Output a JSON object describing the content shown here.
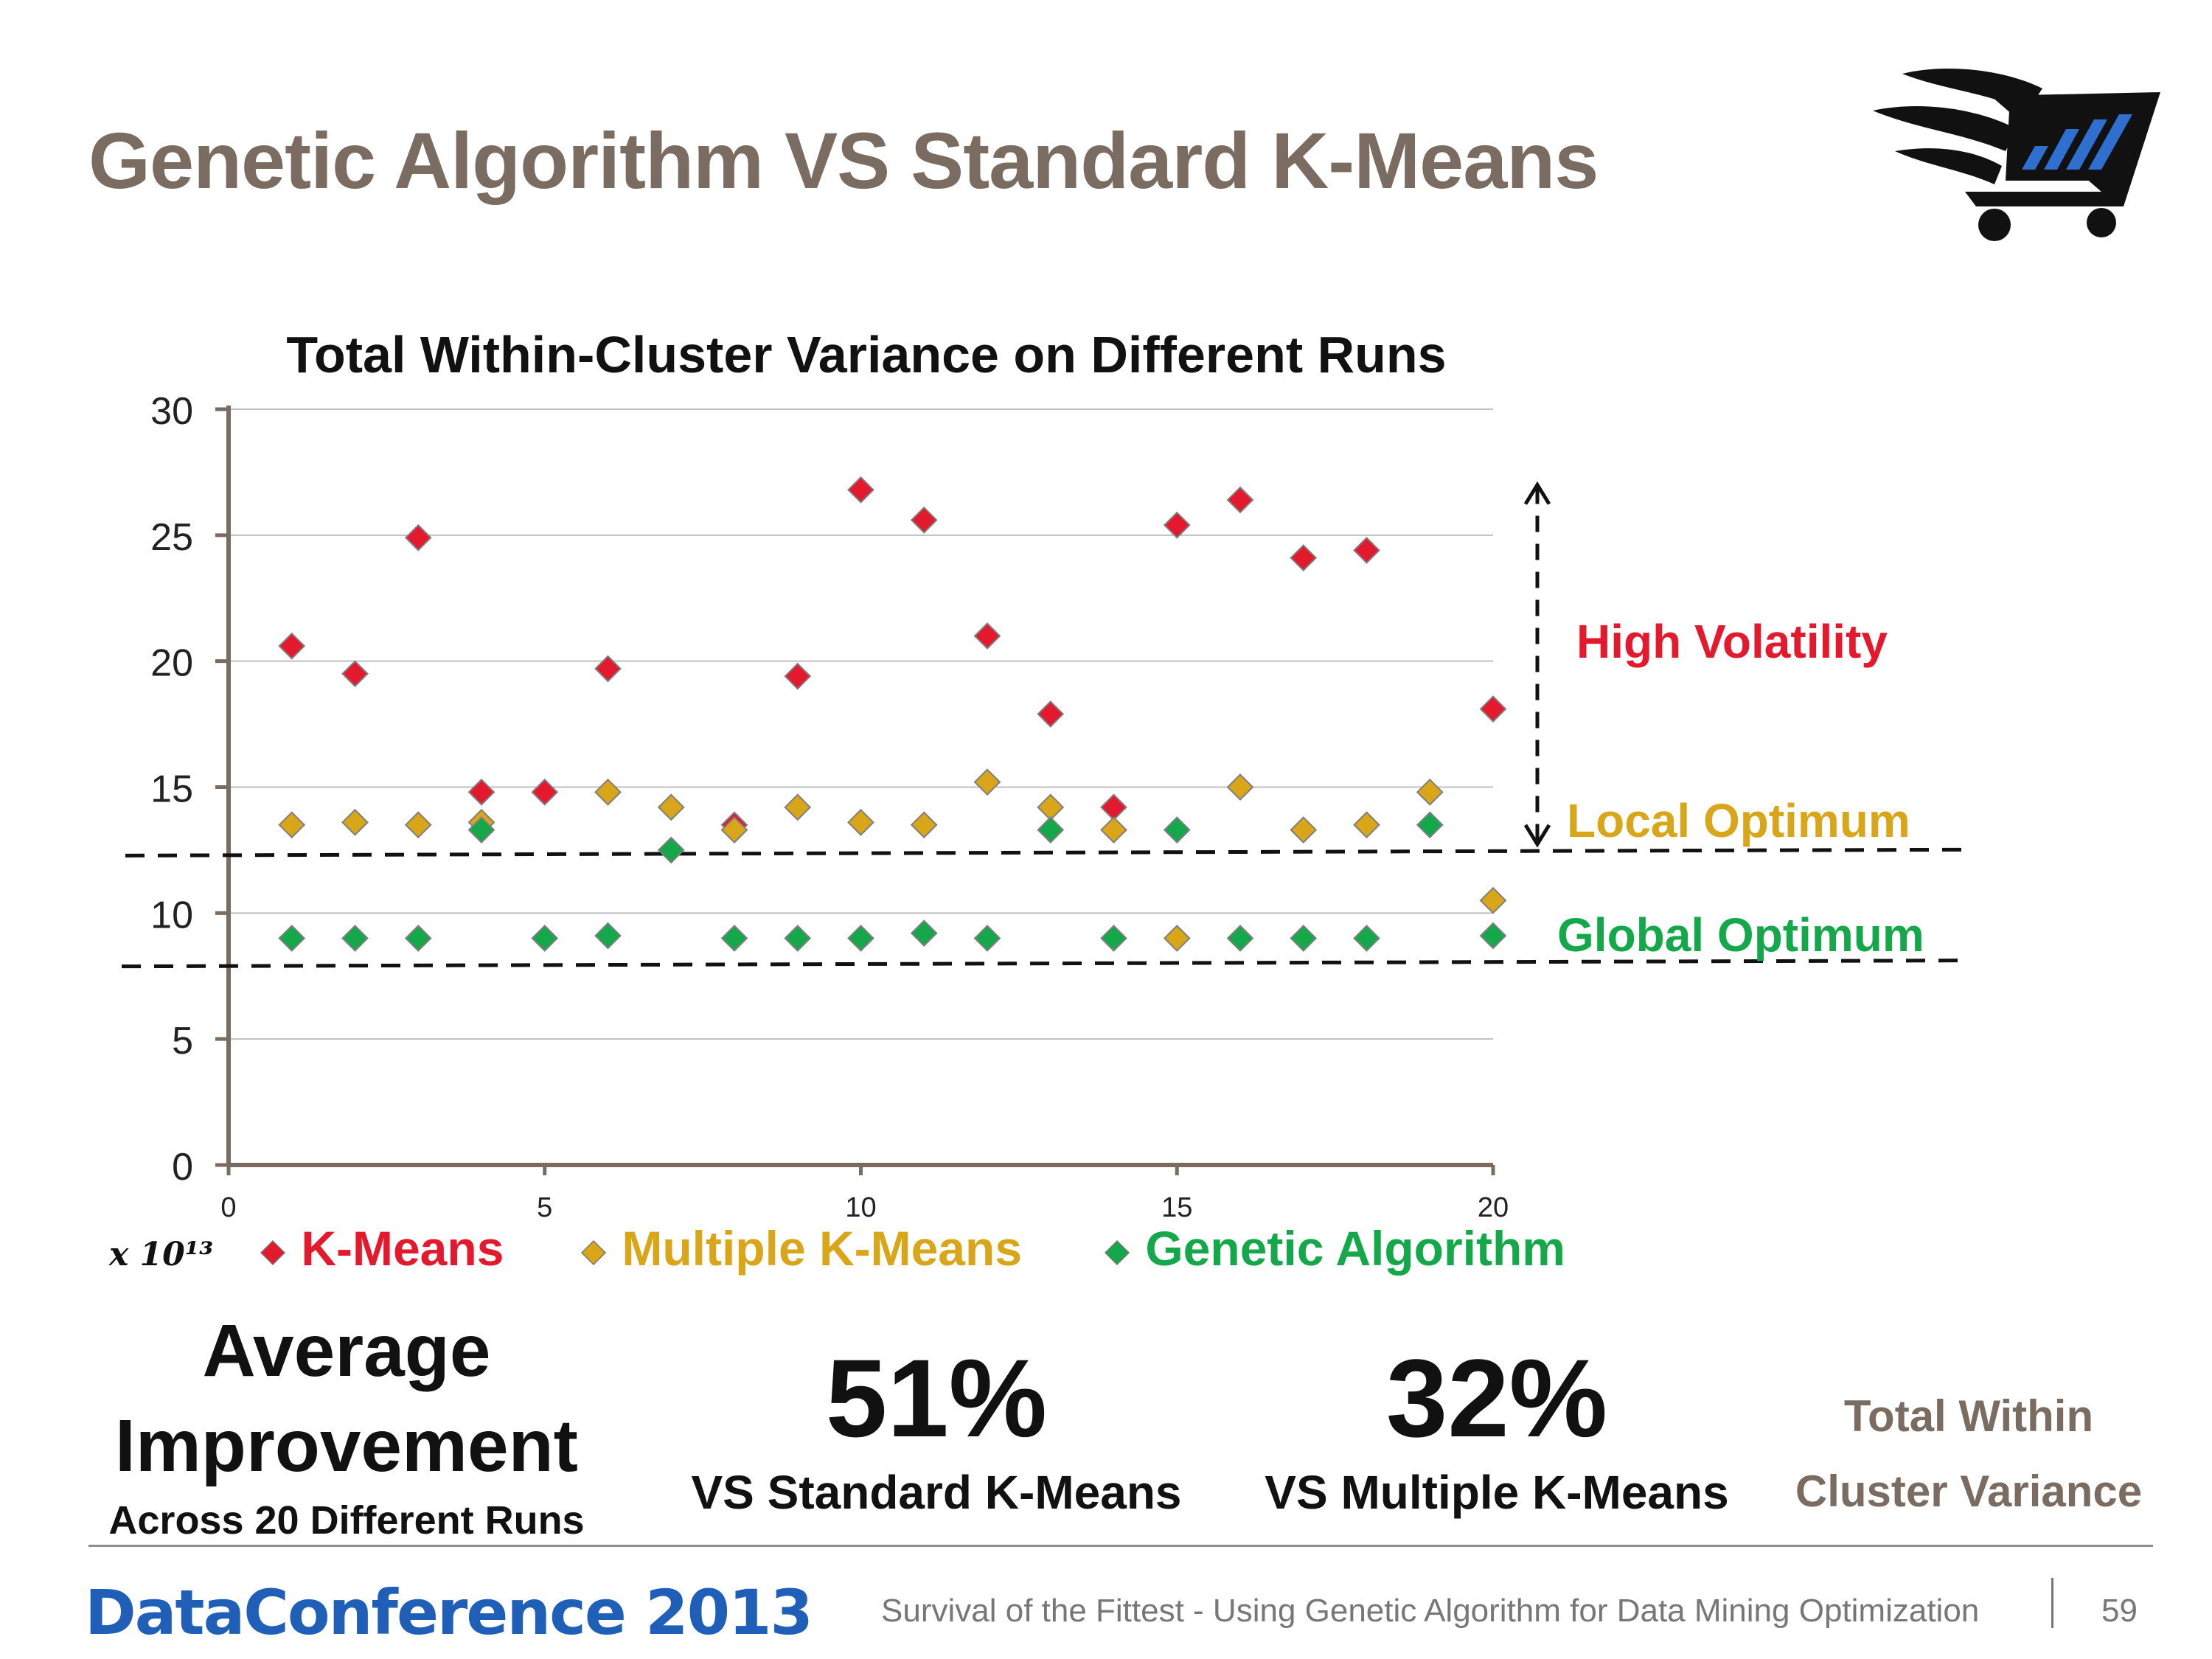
{
  "slide": {
    "title": "Genetic Algorithm VS Standard K-Means",
    "logo_icon": "shopping-cart-icon"
  },
  "chart_data": {
    "type": "scatter",
    "title": "Total Within-Cluster Variance on Different Runs",
    "xlabel": "",
    "ylabel": "",
    "xlim": [
      0,
      20
    ],
    "ylim": [
      0,
      30
    ],
    "x_ticks": [
      0,
      5,
      10,
      15,
      20
    ],
    "y_ticks": [
      0,
      5,
      10,
      15,
      20,
      25,
      30
    ],
    "y_multiplier": "x 10¹³",
    "grid": true,
    "legend_position": "bottom",
    "series": [
      {
        "name": "K-Means",
        "color": "#e3192d",
        "points": [
          [
            1,
            20.6
          ],
          [
            2,
            19.5
          ],
          [
            3,
            24.9
          ],
          [
            4,
            14.8
          ],
          [
            5,
            14.8
          ],
          [
            6,
            19.7
          ],
          [
            8,
            13.5
          ],
          [
            9,
            19.4
          ],
          [
            10,
            26.8
          ],
          [
            11,
            25.6
          ],
          [
            12,
            21.0
          ],
          [
            13,
            17.9
          ],
          [
            14,
            14.2
          ],
          [
            15,
            25.4
          ],
          [
            16,
            26.4
          ],
          [
            17,
            24.1
          ],
          [
            18,
            24.4
          ],
          [
            20,
            18.1
          ]
        ]
      },
      {
        "name": "Multiple K-Means",
        "color": "#d9a619",
        "points": [
          [
            1,
            13.5
          ],
          [
            2,
            13.6
          ],
          [
            3,
            13.5
          ],
          [
            4,
            13.6
          ],
          [
            6,
            14.8
          ],
          [
            7,
            14.2
          ],
          [
            8,
            13.3
          ],
          [
            9,
            14.2
          ],
          [
            10,
            13.6
          ],
          [
            11,
            13.5
          ],
          [
            12,
            15.2
          ],
          [
            13,
            14.2
          ],
          [
            14,
            13.3
          ],
          [
            15,
            9.0
          ],
          [
            16,
            15.0
          ],
          [
            17,
            13.3
          ],
          [
            18,
            13.5
          ],
          [
            19,
            14.8
          ],
          [
            20,
            10.5
          ]
        ]
      },
      {
        "name": "Genetic Algorithm",
        "color": "#14a84b",
        "points": [
          [
            1,
            9.0
          ],
          [
            2,
            9.0
          ],
          [
            3,
            9.0
          ],
          [
            4,
            13.3
          ],
          [
            5,
            9.0
          ],
          [
            6,
            9.1
          ],
          [
            7,
            12.5
          ],
          [
            8,
            9.0
          ],
          [
            9,
            9.0
          ],
          [
            10,
            9.0
          ],
          [
            11,
            9.2
          ],
          [
            12,
            9.0
          ],
          [
            13,
            13.3
          ],
          [
            14,
            9.0
          ],
          [
            15,
            13.3
          ],
          [
            16,
            9.0
          ],
          [
            17,
            9.0
          ],
          [
            18,
            9.0
          ],
          [
            19,
            13.5
          ],
          [
            20,
            9.1
          ]
        ]
      }
    ],
    "annotations": {
      "high_volatility": {
        "text": "High Volatility",
        "color": "#e3192d",
        "arrow_from": 12.5,
        "arrow_to": 27.0
      },
      "local_optimum": {
        "text": "Local Optimum",
        "color": "#d9a619",
        "y": 12.4
      },
      "global_optimum": {
        "text": "Global Optimum",
        "color": "#14a84b",
        "y": 8.0
      }
    }
  },
  "stats": {
    "avg_line1": "Average",
    "avg_line2": "Improvement",
    "avg_sub": "Across 20 Different Runs",
    "stat1_value": "51%",
    "stat1_label": "VS Standard K-Means",
    "stat2_value": "32%",
    "stat2_label": "VS Multiple K-Means",
    "metric_label": "Total Within Cluster Variance"
  },
  "footer": {
    "conference": "DataConference 2013",
    "talk_title": "Survival of the Fittest - Using Genetic Algorithm for Data Mining Optimization",
    "page_number": "59"
  }
}
